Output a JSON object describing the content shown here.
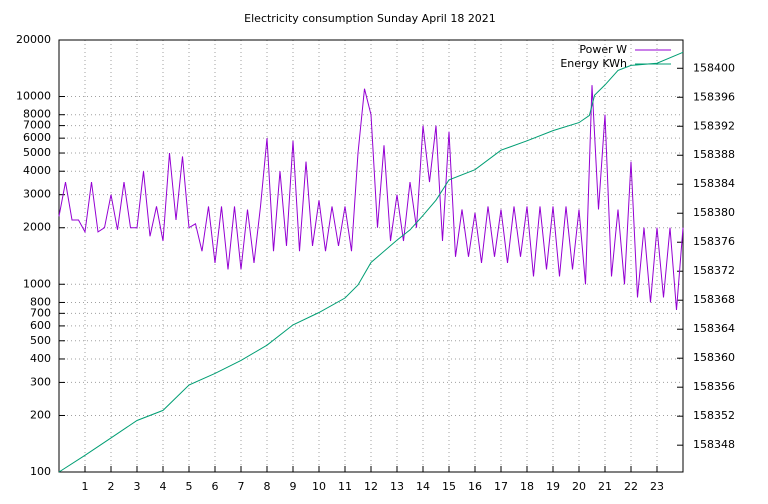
{
  "chart_data": {
    "type": "line",
    "title": "Electricity consumption Sunday April 18 2021",
    "xlim": [
      0,
      24
    ],
    "xticks": [
      1,
      2,
      3,
      4,
      5,
      6,
      7,
      8,
      9,
      10,
      11,
      12,
      13,
      14,
      15,
      16,
      17,
      18,
      19,
      20,
      21,
      22,
      23
    ],
    "ylim": [
      100,
      20000
    ],
    "log_y": true,
    "yticks": [
      100,
      200,
      300,
      400,
      500,
      600,
      700,
      800,
      1000,
      2000,
      3000,
      4000,
      5000,
      6000,
      7000,
      8000,
      10000,
      20000
    ],
    "y2lim": [
      158344.3,
      158403.9
    ],
    "y2ticks": [
      158348,
      158352,
      158356,
      158360,
      158364,
      158368,
      158372,
      158376,
      158380,
      158384,
      158388,
      158392,
      158396,
      158400
    ],
    "grid": true,
    "legend": "top-right",
    "series": [
      {
        "name": "Power W",
        "color": "#9400d3",
        "x": [
          0,
          0.25,
          0.5,
          0.75,
          1,
          1.25,
          1.5,
          1.75,
          2,
          2.25,
          2.5,
          2.75,
          3,
          3.25,
          3.5,
          3.75,
          4,
          4.25,
          4.5,
          4.75,
          5,
          5.25,
          5.5,
          5.75,
          6,
          6.25,
          6.5,
          6.75,
          7,
          7.25,
          7.5,
          7.75,
          8,
          8.25,
          8.5,
          8.75,
          9,
          9.25,
          9.5,
          9.75,
          10,
          10.25,
          10.5,
          10.75,
          11,
          11.25,
          11.5,
          11.75,
          12,
          12.25,
          12.5,
          12.75,
          13,
          13.25,
          13.5,
          13.75,
          14,
          14.25,
          14.5,
          14.75,
          15,
          15.25,
          15.5,
          15.75,
          16,
          16.25,
          16.5,
          16.75,
          17,
          17.25,
          17.5,
          17.75,
          18,
          18.25,
          18.5,
          18.75,
          19,
          19.25,
          19.5,
          19.75,
          20,
          20.25,
          20.5,
          20.75,
          21,
          21.25,
          21.5,
          21.75,
          22,
          22.25,
          22.5,
          22.75,
          23,
          23.25,
          23.5,
          23.75,
          24
        ],
        "values": [
          2300,
          3500,
          2200,
          2200,
          1900,
          3500,
          1900,
          2000,
          3000,
          1950,
          3500,
          2000,
          2000,
          4000,
          1800,
          2600,
          1700,
          5000,
          2200,
          4800,
          2000,
          2100,
          1500,
          2600,
          1300,
          2600,
          1200,
          2600,
          1200,
          2500,
          1300,
          2600,
          6000,
          1500,
          4000,
          1600,
          5800,
          1500,
          4500,
          1600,
          2800,
          1500,
          2600,
          1600,
          2600,
          1500,
          5000,
          11000,
          8000,
          2000,
          5500,
          1700,
          3000,
          1700,
          3500,
          2000,
          7000,
          3500,
          7000,
          1700,
          6500,
          1400,
          2500,
          1400,
          2400,
          1300,
          2600,
          1400,
          2500,
          1300,
          2600,
          1400,
          2600,
          1100,
          2600,
          1200,
          2600,
          1100,
          2600,
          1200,
          2500,
          1000,
          11500,
          2500,
          8000,
          1100,
          2500,
          1000,
          4500,
          850,
          2000,
          800,
          2000,
          850,
          2000,
          730,
          2000
        ]
      },
      {
        "name": "Energy KWh",
        "color": "#009e73",
        "axis": "y2",
        "x": [
          0,
          1,
          2,
          3,
          4,
          5,
          6,
          7,
          8,
          9,
          10,
          11,
          11.5,
          12,
          13,
          13.5,
          14,
          14.5,
          15,
          16,
          17,
          18,
          19,
          20,
          20.4,
          20.6,
          21,
          21.5,
          22,
          23,
          24
        ],
        "values": [
          158344.3,
          158346.6,
          158349,
          158351.4,
          158352.8,
          158356.3,
          158357.9,
          158359.7,
          158361.8,
          158364.6,
          158366.3,
          158368.3,
          158370.1,
          158373.2,
          158376.3,
          158377.7,
          158379.7,
          158381.8,
          158384.6,
          158386,
          158388.7,
          158390,
          158391.4,
          158392.5,
          158393.5,
          158396.3,
          158397.7,
          158399.7,
          158400.4,
          158400.7,
          158402.2
        ]
      }
    ]
  }
}
